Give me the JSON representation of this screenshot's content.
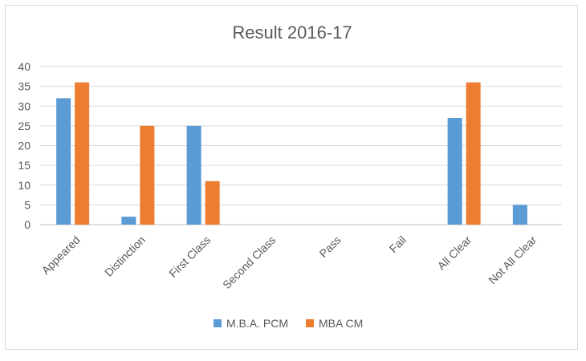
{
  "chart_data": {
    "type": "bar",
    "title": "Result 2016-17",
    "xlabel": "",
    "ylabel": "",
    "categories": [
      "Appeared",
      "Distinction",
      "First Class",
      "Second Class",
      "Pass",
      "Fail",
      "All Clear",
      "Not All Clear"
    ],
    "series": [
      {
        "name": "M.B.A. PCM",
        "color": "#5b9bd5",
        "values": [
          32,
          2,
          25,
          0,
          0,
          0,
          27,
          5
        ]
      },
      {
        "name": "MBA CM",
        "color": "#ed7d31",
        "values": [
          36,
          25,
          11,
          0,
          0,
          0,
          36,
          0
        ]
      }
    ],
    "ylim": [
      0,
      40
    ],
    "yticks": [
      0,
      5,
      10,
      15,
      20,
      25,
      30,
      35,
      40
    ],
    "grid": true,
    "legend_position": "bottom"
  }
}
